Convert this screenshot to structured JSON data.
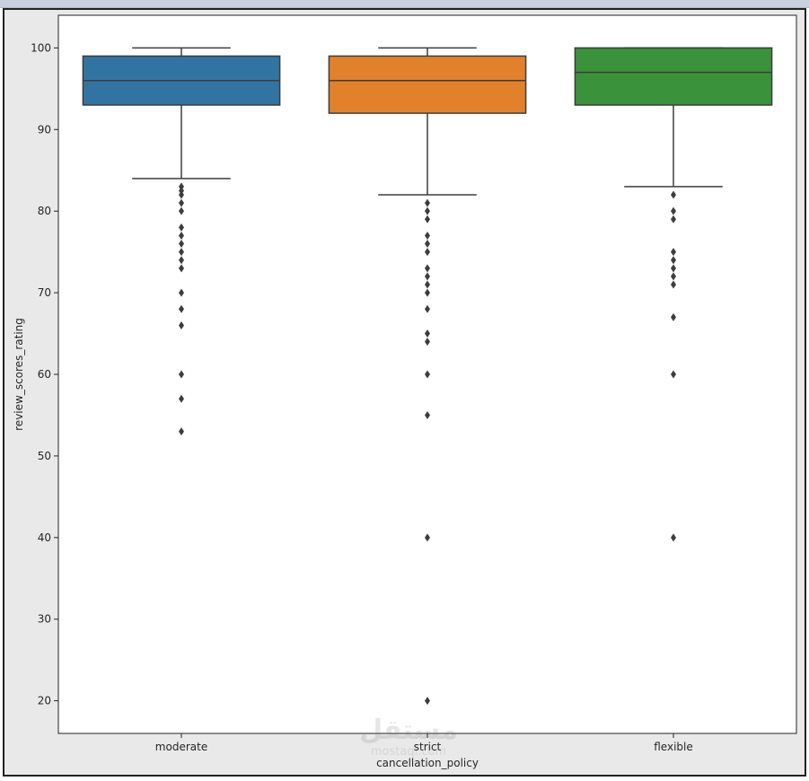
{
  "chart_data": {
    "type": "box",
    "xlabel": "cancellation_policy",
    "ylabel": "review_scores_rating",
    "categories": [
      "moderate",
      "strict",
      "flexible"
    ],
    "colors": [
      "#3274a1",
      "#e1812c",
      "#3a923a"
    ],
    "ylim": [
      16,
      104
    ],
    "yticks": [
      20,
      30,
      40,
      50,
      60,
      70,
      80,
      90,
      100
    ],
    "boxes": [
      {
        "name": "moderate",
        "whisker_low": 84,
        "q1": 93,
        "median": 96,
        "q3": 99,
        "whisker_high": 100,
        "outliers": [
          83,
          82.5,
          82,
          81,
          80,
          78,
          77,
          76,
          75,
          74,
          73,
          70,
          68,
          66,
          60,
          57,
          53
        ]
      },
      {
        "name": "strict",
        "whisker_low": 82,
        "q1": 92,
        "median": 96,
        "q3": 99,
        "whisker_high": 100,
        "outliers": [
          81,
          80,
          79,
          77,
          76,
          75,
          73,
          72,
          71,
          70,
          68,
          65,
          64,
          60,
          55,
          40,
          20
        ]
      },
      {
        "name": "flexible",
        "whisker_low": 83,
        "q1": 93,
        "median": 97,
        "q3": 100,
        "whisker_high": 100,
        "outliers": [
          82,
          80,
          79,
          75,
          74,
          73,
          72,
          71,
          67,
          60,
          40
        ]
      }
    ],
    "grid": false,
    "legend": "none"
  },
  "watermark": {
    "logo_text": "مستقل",
    "sub_text": "mostaql.com"
  }
}
